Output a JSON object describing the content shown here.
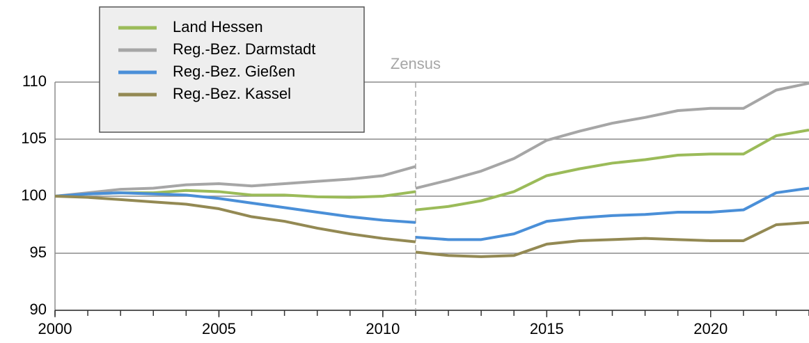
{
  "chart_data": {
    "type": "line",
    "x": [
      2000,
      2001,
      2002,
      2003,
      2004,
      2005,
      2006,
      2007,
      2008,
      2009,
      2010,
      2011,
      2011,
      2011,
      2012,
      2013,
      2014,
      2015,
      2016,
      2017,
      2018,
      2019,
      2020,
      2021,
      2022,
      2023
    ],
    "series": [
      {
        "name": "Land Hessen",
        "color": "#9bbb59",
        "values": [
          100,
          100.2,
          100.3,
          100.3,
          100.5,
          100.4,
          100.1,
          100.1,
          99.95,
          99.9,
          100.0,
          100.4,
          null,
          98.8,
          99.1,
          99.6,
          100.4,
          101.8,
          102.4,
          102.9,
          103.2,
          103.6,
          103.7,
          103.7,
          105.3,
          105.8
        ]
      },
      {
        "name": "Reg.-Bez. Darmstadt",
        "color": "#a6a6a6",
        "values": [
          100,
          100.3,
          100.6,
          100.7,
          101.0,
          101.1,
          100.9,
          101.1,
          101.3,
          101.5,
          101.8,
          102.6,
          null,
          100.7,
          101.4,
          102.2,
          103.3,
          104.9,
          105.7,
          106.4,
          106.9,
          107.5,
          107.7,
          107.7,
          109.3,
          109.9
        ]
      },
      {
        "name": "Reg.-Bez. Gießen",
        "color": "#4a8fd8",
        "values": [
          100,
          100.2,
          100.3,
          100.2,
          100.1,
          99.8,
          99.4,
          99.0,
          98.6,
          98.2,
          97.9,
          97.7,
          null,
          96.4,
          96.2,
          96.2,
          96.7,
          97.8,
          98.1,
          98.3,
          98.4,
          98.6,
          98.6,
          98.8,
          100.3,
          100.7
        ]
      },
      {
        "name": "Reg.-Bez. Kassel",
        "color": "#938953",
        "values": [
          100,
          99.9,
          99.7,
          99.5,
          99.3,
          98.9,
          98.2,
          97.8,
          97.2,
          96.7,
          96.3,
          96.0,
          null,
          95.1,
          94.8,
          94.7,
          94.8,
          95.8,
          96.1,
          96.2,
          96.3,
          96.2,
          96.1,
          96.1,
          97.5,
          97.7
        ]
      }
    ],
    "xlim": [
      2000,
      2023
    ],
    "xticks": [
      2000,
      2005,
      2010,
      2015,
      2020
    ],
    "ylim": [
      90,
      110
    ],
    "yticks": [
      90,
      95,
      100,
      105,
      110
    ],
    "grid": true,
    "annotation": {
      "text": "Zensus",
      "x": 2011
    },
    "legend": "upper left"
  }
}
